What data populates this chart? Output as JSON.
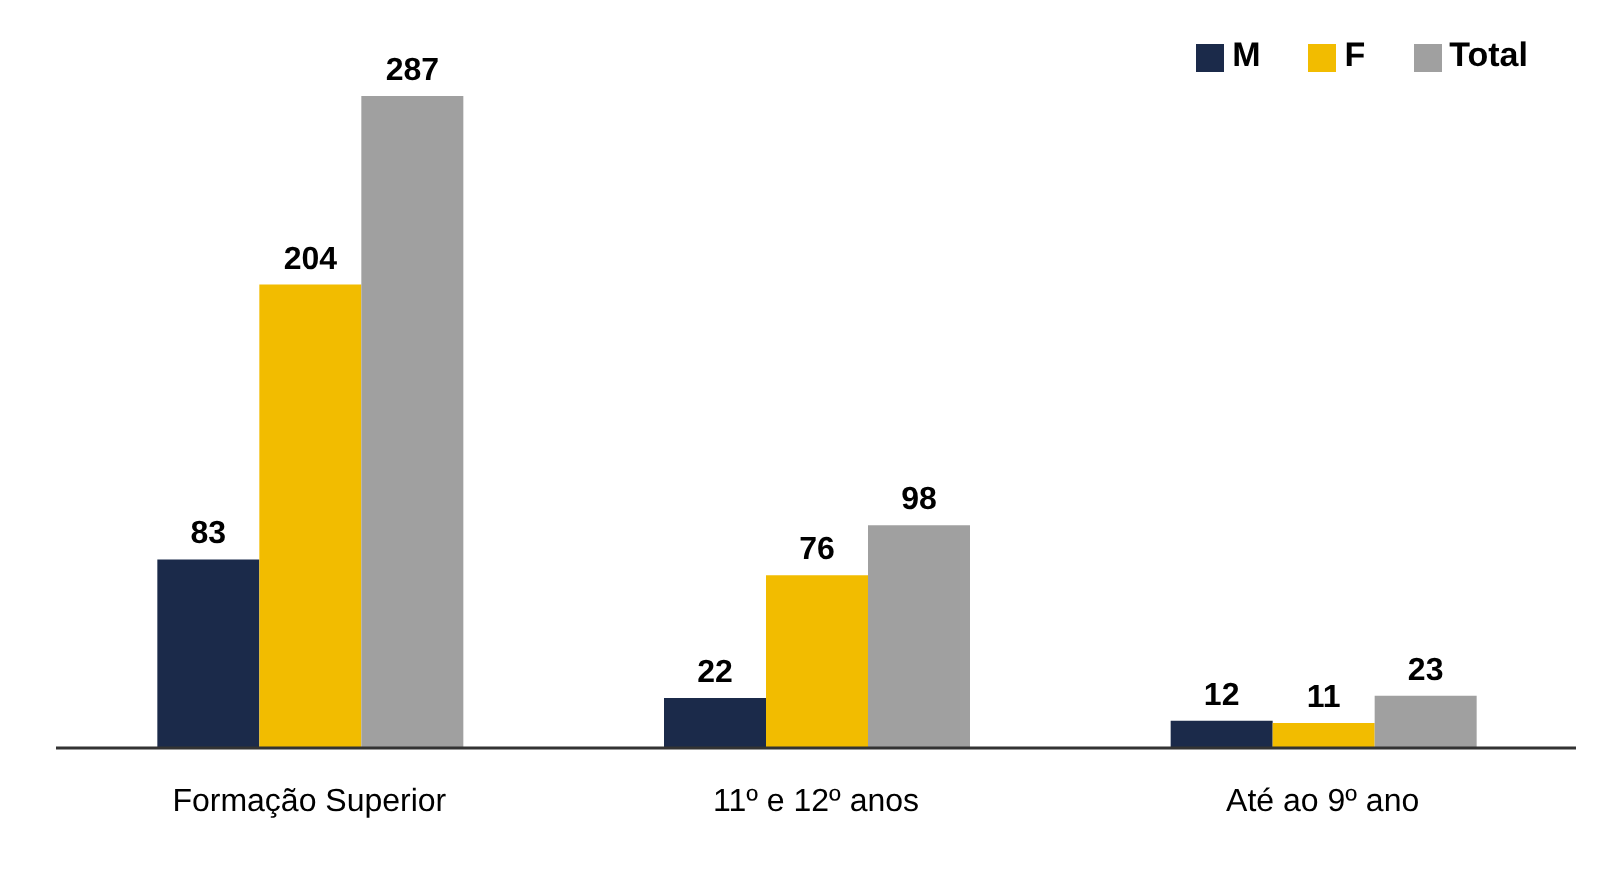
{
  "chart_data": {
    "type": "bar",
    "categories": [
      "Formação Superior",
      "11º e 12º anos",
      "Até ao 9º ano"
    ],
    "series": [
      {
        "name": "M",
        "color": "#1b2a4a",
        "values": [
          83,
          22,
          12
        ]
      },
      {
        "name": "F",
        "color": "#f2bc00",
        "values": [
          204,
          76,
          11
        ]
      },
      {
        "name": "Total",
        "color": "#a0a0a0",
        "values": [
          287,
          98,
          23
        ]
      }
    ],
    "data_labels": true,
    "legend": "top right",
    "grid": false
  }
}
